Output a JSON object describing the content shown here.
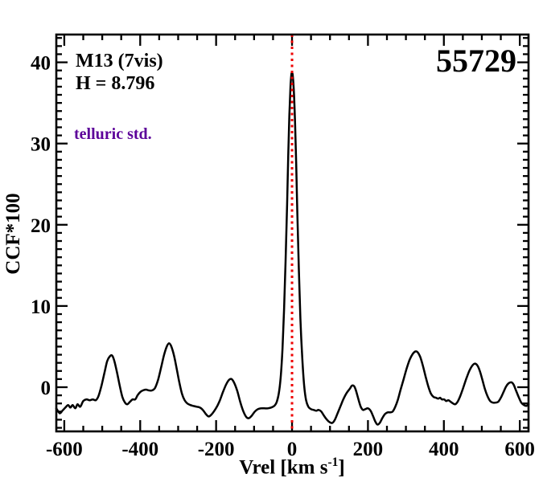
{
  "chart_data": {
    "type": "line",
    "title": "",
    "xlabel": {
      "main": "Vrel [km s",
      "sup": "-1",
      "close": "]"
    },
    "ylabel": "CCF*100",
    "xlim": [
      -621,
      623
    ],
    "ylim": [
      -5.44,
      43.42
    ],
    "grid": false,
    "legend": "none",
    "x_ticks": {
      "major": [
        -600,
        -400,
        -200,
        0,
        200,
        400,
        600
      ],
      "labels": [
        "-600",
        "-400",
        "-200",
        "0",
        "200",
        "400",
        "600"
      ],
      "minor_step": 50
    },
    "y_ticks": {
      "major": [
        0,
        10,
        20,
        30,
        40
      ],
      "labels": [
        "0",
        "10",
        "20",
        "30",
        "40"
      ],
      "minor_step": 1
    },
    "annotations": [
      {
        "id": "target",
        "text": "M13 (7vis)",
        "color": "#000000"
      },
      {
        "id": "hmag",
        "text": "H = 8.796",
        "color": "#000000"
      },
      {
        "id": "telluric",
        "text": "telluric std.",
        "color": "#5c0099"
      },
      {
        "id": "mjd",
        "text": "55729",
        "color": "#000000"
      }
    ],
    "marker_line": {
      "x": 0,
      "color": "#ee0000",
      "style": "dotted"
    },
    "series": [
      {
        "name": "ccf",
        "color": "#000000",
        "width": 2.5,
        "points": [
          [
            -621,
            -2.6
          ],
          [
            -612,
            -3.2
          ],
          [
            -605,
            -2.9
          ],
          [
            -597,
            -2.5
          ],
          [
            -590,
            -2.2
          ],
          [
            -584,
            -2.5
          ],
          [
            -578,
            -2.2
          ],
          [
            -571,
            -2.6
          ],
          [
            -565,
            -2.1
          ],
          [
            -558,
            -2.4
          ],
          [
            -550,
            -1.7
          ],
          [
            -542,
            -1.5
          ],
          [
            -533,
            -1.6
          ],
          [
            -525,
            -1.5
          ],
          [
            -517,
            -1.6
          ],
          [
            -510,
            -1.1
          ],
          [
            -502,
            0.2
          ],
          [
            -494,
            1.8
          ],
          [
            -487,
            3.2
          ],
          [
            -480,
            3.8
          ],
          [
            -474,
            3.9
          ],
          [
            -468,
            3.2
          ],
          [
            -461,
            1.8
          ],
          [
            -454,
            0.2
          ],
          [
            -447,
            -1.2
          ],
          [
            -440,
            -1.9
          ],
          [
            -434,
            -2.1
          ],
          [
            -427,
            -1.8
          ],
          [
            -420,
            -1.5
          ],
          [
            -413,
            -1.5
          ],
          [
            -407,
            -1.0
          ],
          [
            -400,
            -0.6
          ],
          [
            -393,
            -0.4
          ],
          [
            -385,
            -0.3
          ],
          [
            -377,
            -0.4
          ],
          [
            -369,
            -0.4
          ],
          [
            -361,
            -0.1
          ],
          [
            -353,
            0.9
          ],
          [
            -345,
            2.4
          ],
          [
            -337,
            4.0
          ],
          [
            -330,
            5.0
          ],
          [
            -324,
            5.4
          ],
          [
            -318,
            5.0
          ],
          [
            -311,
            3.9
          ],
          [
            -304,
            2.3
          ],
          [
            -297,
            0.6
          ],
          [
            -290,
            -0.8
          ],
          [
            -283,
            -1.6
          ],
          [
            -276,
            -2.0
          ],
          [
            -268,
            -2.2
          ],
          [
            -260,
            -2.3
          ],
          [
            -251,
            -2.4
          ],
          [
            -243,
            -2.5
          ],
          [
            -235,
            -2.8
          ],
          [
            -227,
            -3.3
          ],
          [
            -220,
            -3.6
          ],
          [
            -213,
            -3.4
          ],
          [
            -206,
            -3.0
          ],
          [
            -198,
            -2.4
          ],
          [
            -190,
            -1.6
          ],
          [
            -182,
            -0.6
          ],
          [
            -174,
            0.3
          ],
          [
            -166,
            0.9
          ],
          [
            -159,
            1.0
          ],
          [
            -152,
            0.5
          ],
          [
            -144,
            -0.5
          ],
          [
            -136,
            -1.9
          ],
          [
            -128,
            -3.0
          ],
          [
            -120,
            -3.7
          ],
          [
            -113,
            -3.8
          ],
          [
            -106,
            -3.5
          ],
          [
            -98,
            -3.0
          ],
          [
            -90,
            -2.7
          ],
          [
            -82,
            -2.6
          ],
          [
            -73,
            -2.6
          ],
          [
            -64,
            -2.6
          ],
          [
            -55,
            -2.5
          ],
          [
            -47,
            -2.3
          ],
          [
            -41,
            -1.9
          ],
          [
            -35,
            -0.8
          ],
          [
            -30,
            1.2
          ],
          [
            -25,
            4.8
          ],
          [
            -21,
            9.5
          ],
          [
            -17,
            15.5
          ],
          [
            -13,
            22.5
          ],
          [
            -10,
            28.5
          ],
          [
            -7,
            33.5
          ],
          [
            -4,
            37.0
          ],
          [
            -2,
            38.4
          ],
          [
            0,
            38.8
          ],
          [
            2,
            38.3
          ],
          [
            5,
            36.2
          ],
          [
            8,
            32.5
          ],
          [
            11,
            27.5
          ],
          [
            14,
            21.5
          ],
          [
            18,
            14.5
          ],
          [
            22,
            8.5
          ],
          [
            27,
            3.5
          ],
          [
            32,
            0.2
          ],
          [
            37,
            -1.6
          ],
          [
            43,
            -2.4
          ],
          [
            50,
            -2.7
          ],
          [
            57,
            -2.8
          ],
          [
            64,
            -2.9
          ],
          [
            70,
            -2.8
          ],
          [
            77,
            -3.0
          ],
          [
            84,
            -3.5
          ],
          [
            92,
            -4.0
          ],
          [
            99,
            -4.3
          ],
          [
            106,
            -4.4
          ],
          [
            113,
            -4.0
          ],
          [
            120,
            -3.2
          ],
          [
            128,
            -2.3
          ],
          [
            136,
            -1.4
          ],
          [
            144,
            -0.7
          ],
          [
            152,
            -0.2
          ],
          [
            158,
            0.2
          ],
          [
            164,
            0.1
          ],
          [
            169,
            -0.5
          ],
          [
            175,
            -1.5
          ],
          [
            181,
            -2.4
          ],
          [
            187,
            -2.8
          ],
          [
            193,
            -2.7
          ],
          [
            200,
            -2.6
          ],
          [
            207,
            -2.9
          ],
          [
            213,
            -3.5
          ],
          [
            219,
            -4.2
          ],
          [
            225,
            -4.6
          ],
          [
            231,
            -4.4
          ],
          [
            238,
            -3.8
          ],
          [
            245,
            -3.3
          ],
          [
            252,
            -3.1
          ],
          [
            259,
            -3.1
          ],
          [
            265,
            -3.0
          ],
          [
            272,
            -2.4
          ],
          [
            279,
            -1.5
          ],
          [
            286,
            -0.3
          ],
          [
            294,
            1.0
          ],
          [
            302,
            2.3
          ],
          [
            310,
            3.4
          ],
          [
            318,
            4.1
          ],
          [
            325,
            4.4
          ],
          [
            331,
            4.3
          ],
          [
            338,
            3.7
          ],
          [
            345,
            2.6
          ],
          [
            352,
            1.3
          ],
          [
            359,
            0.1
          ],
          [
            366,
            -0.8
          ],
          [
            373,
            -1.2
          ],
          [
            379,
            -1.3
          ],
          [
            385,
            -1.4
          ],
          [
            390,
            -1.3
          ],
          [
            395,
            -1.5
          ],
          [
            401,
            -1.5
          ],
          [
            406,
            -1.7
          ],
          [
            412,
            -1.6
          ],
          [
            418,
            -1.8
          ],
          [
            424,
            -2.0
          ],
          [
            430,
            -2.1
          ],
          [
            436,
            -1.8
          ],
          [
            443,
            -1.1
          ],
          [
            450,
            -0.2
          ],
          [
            458,
            0.9
          ],
          [
            466,
            1.9
          ],
          [
            474,
            2.6
          ],
          [
            481,
            2.9
          ],
          [
            488,
            2.7
          ],
          [
            494,
            2.1
          ],
          [
            501,
            1.0
          ],
          [
            508,
            -0.2
          ],
          [
            515,
            -1.1
          ],
          [
            522,
            -1.7
          ],
          [
            529,
            -1.9
          ],
          [
            536,
            -1.9
          ],
          [
            543,
            -1.8
          ],
          [
            550,
            -1.3
          ],
          [
            557,
            -0.6
          ],
          [
            564,
            0.1
          ],
          [
            571,
            0.5
          ],
          [
            578,
            0.6
          ],
          [
            584,
            0.3
          ],
          [
            590,
            -0.4
          ],
          [
            597,
            -1.2
          ],
          [
            604,
            -1.9
          ],
          [
            611,
            -2.2
          ],
          [
            617,
            -2.3
          ],
          [
            623,
            -2.1
          ]
        ]
      }
    ]
  },
  "style_colors": {
    "axis": "#000000",
    "background": "#ffffff"
  }
}
